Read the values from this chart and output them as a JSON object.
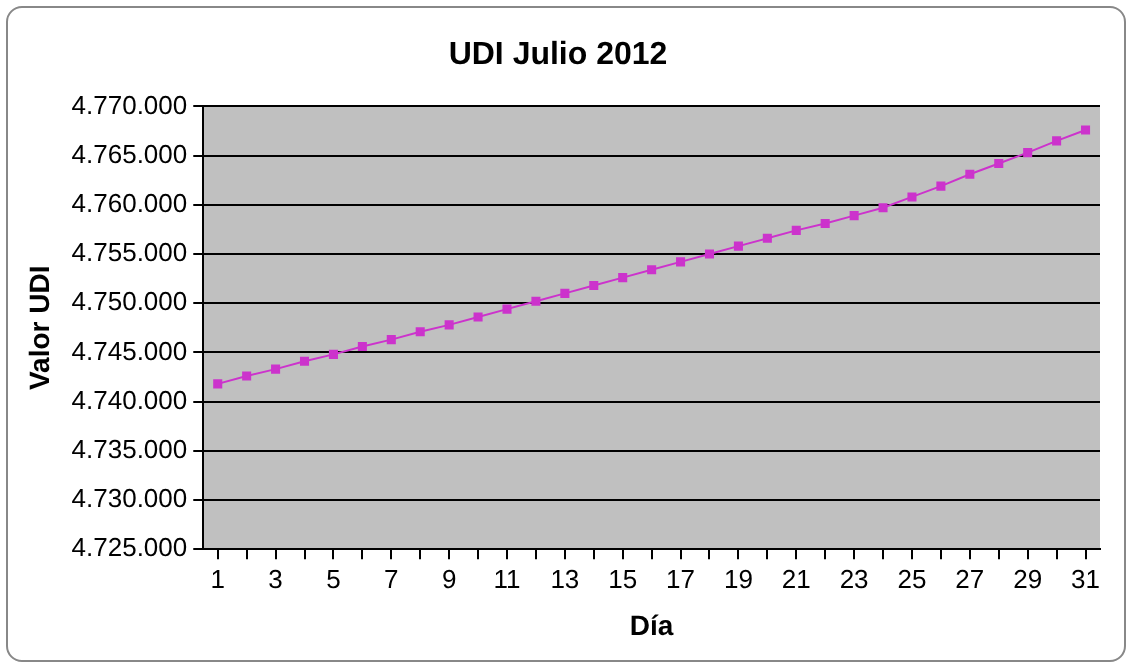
{
  "chart_data": {
    "type": "line",
    "title": "UDI Julio 2012",
    "xlabel": "Día",
    "ylabel": "Valor UDI",
    "x": [
      1,
      2,
      3,
      4,
      5,
      6,
      7,
      8,
      9,
      10,
      11,
      12,
      13,
      14,
      15,
      16,
      17,
      18,
      19,
      20,
      21,
      22,
      23,
      24,
      25,
      26,
      27,
      28,
      29,
      30,
      31
    ],
    "xlim": [
      0.5,
      31.5
    ],
    "xticks": [
      1,
      {
        "value": 2,
        "label": null
      },
      3,
      {
        "value": 4,
        "label": null
      },
      5,
      {
        "value": 6,
        "label": null
      },
      7,
      {
        "value": 8,
        "label": null
      },
      9,
      {
        "value": 10,
        "label": null
      },
      11,
      {
        "value": 12,
        "label": null
      },
      13,
      {
        "value": 14,
        "label": null
      },
      15,
      {
        "value": 16,
        "label": null
      },
      17,
      {
        "value": 18,
        "label": null
      },
      19,
      {
        "value": 20,
        "label": null
      },
      21,
      {
        "value": 22,
        "label": null
      },
      23,
      {
        "value": 24,
        "label": null
      },
      25,
      {
        "value": 26,
        "label": null
      },
      27,
      {
        "value": 28,
        "label": null
      },
      29,
      {
        "value": 30,
        "label": null
      },
      31
    ],
    "series": [
      {
        "color": "#cc33cc",
        "values": [
          4741800,
          4742600,
          4743300,
          4744100,
          4744800,
          4745600,
          4746300,
          4747100,
          4747800,
          4748600,
          4749400,
          4750200,
          4751000,
          4751800,
          4752600,
          4753400,
          4754200,
          4755000,
          4755800,
          4756600,
          4757400,
          4758100,
          4758900,
          4759700,
          4760800,
          4761900,
          4763100,
          4764200,
          4765300,
          4766500,
          4767600
        ]
      }
    ],
    "ylim": [
      4725000,
      4770000
    ],
    "yticks": [
      {
        "value": 4725000,
        "label": "4.725.000"
      },
      {
        "value": 4730000,
        "label": "4.730.000"
      },
      {
        "value": 4735000,
        "label": "4.735.000"
      },
      {
        "value": 4740000,
        "label": "4.740.000"
      },
      {
        "value": 4745000,
        "label": "4.745.000"
      },
      {
        "value": 4750000,
        "label": "4.750.000"
      },
      {
        "value": 4755000,
        "label": "4.755.000"
      },
      {
        "value": 4760000,
        "label": "4.760.000"
      },
      {
        "value": 4765000,
        "label": "4.765.000"
      },
      {
        "value": 4770000,
        "label": "4.770.000"
      }
    ],
    "grid": "y",
    "legend": false,
    "marker": "square",
    "line_style": "solid"
  }
}
